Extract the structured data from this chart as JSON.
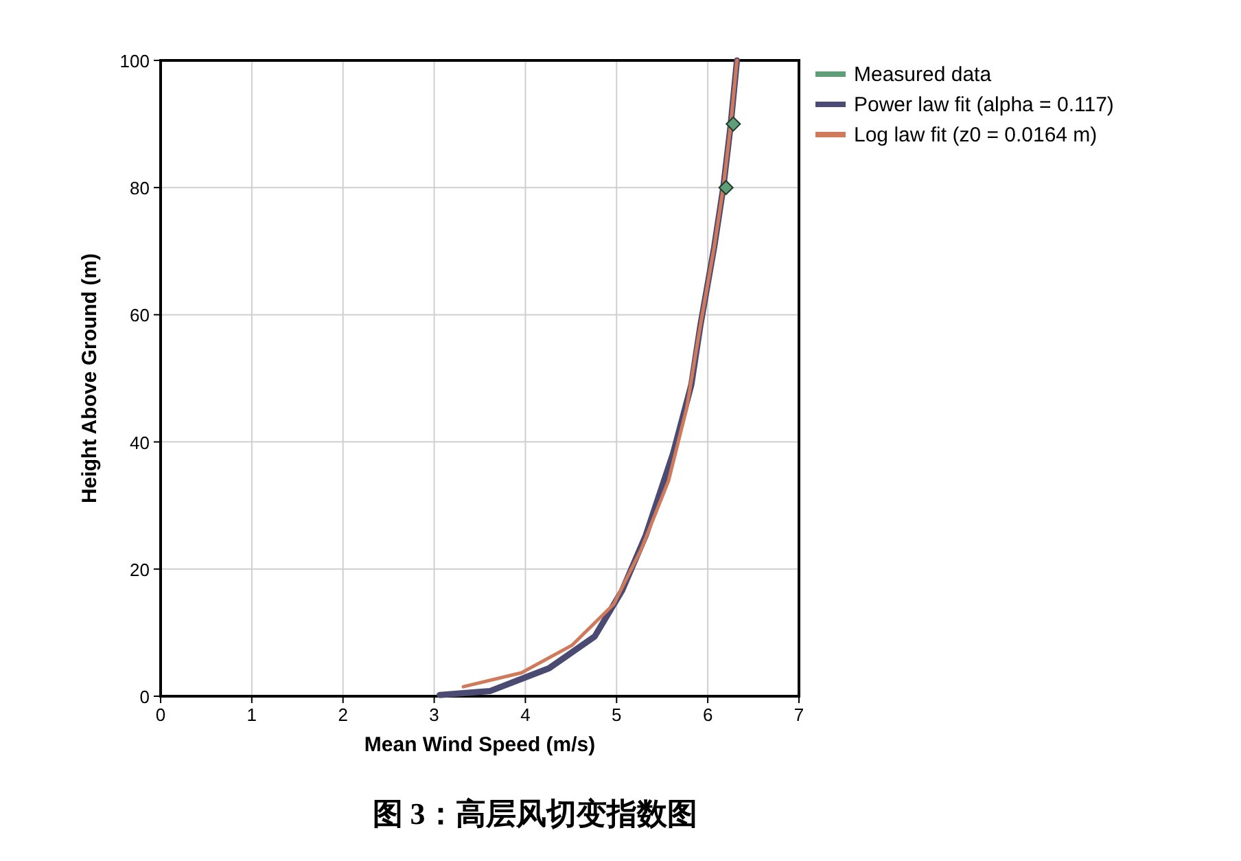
{
  "chart_data": {
    "type": "line",
    "xlabel": "Mean Wind Speed (m/s)",
    "ylabel": "Height Above Ground (m)",
    "annotations": [
      "图 3：高层风切变指数图"
    ],
    "xlim": [
      0,
      7
    ],
    "ylim": [
      0,
      100
    ],
    "xticks": [
      0,
      1,
      2,
      3,
      4,
      5,
      6,
      7
    ],
    "yticks": [
      0,
      20,
      40,
      60,
      80,
      100
    ],
    "grid": true,
    "legend": "top right",
    "marker": "none",
    "line_style": "solid",
    "series": [
      {
        "name": "Measured data",
        "type": "scatter",
        "marker": "diamond",
        "color": "#5f9e78",
        "x": [
          6.2,
          6.28
        ],
        "values": [
          80,
          90
        ]
      },
      {
        "name": "Power law fit (alpha = 0.117)",
        "color": "#4b4a72",
        "x": [
          3.06,
          3.61,
          4.26,
          4.76,
          5.06,
          5.32,
          5.62,
          5.82,
          5.92,
          6.07,
          6.17,
          6.25,
          6.32
        ],
        "values": [
          0.2,
          0.8,
          4.4,
          9.4,
          16.6,
          25.3,
          38.2,
          49,
          58.4,
          70.6,
          80,
          89.7,
          100
        ]
      },
      {
        "name": "Log law fit (z0 = 0.0164 m)",
        "color": "#d07a5c",
        "x": [
          3.32,
          3.96,
          4.51,
          4.97,
          5.27,
          5.57,
          5.77,
          5.92,
          6.07,
          6.17,
          6.25,
          6.32
        ],
        "values": [
          1.5,
          3.7,
          8.0,
          14.5,
          23.1,
          33.9,
          45.4,
          58.4,
          70.6,
          80,
          89.7,
          100
        ]
      }
    ]
  }
}
